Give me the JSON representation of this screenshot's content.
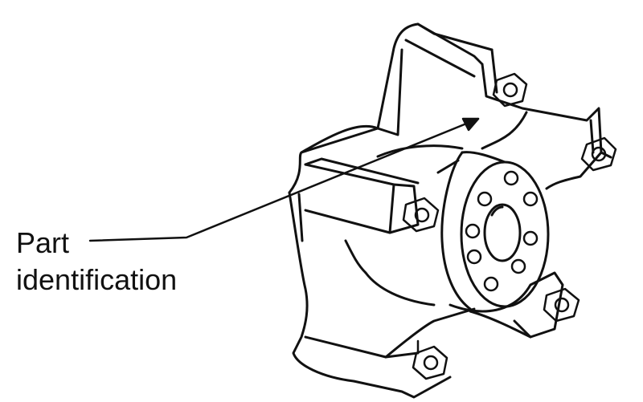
{
  "diagram": {
    "subject": "wheel hub with five mounting arms",
    "callout": {
      "line1": "Part",
      "line2": "identification"
    },
    "colors": {
      "ink": "#111111",
      "background": "#ffffff"
    }
  }
}
